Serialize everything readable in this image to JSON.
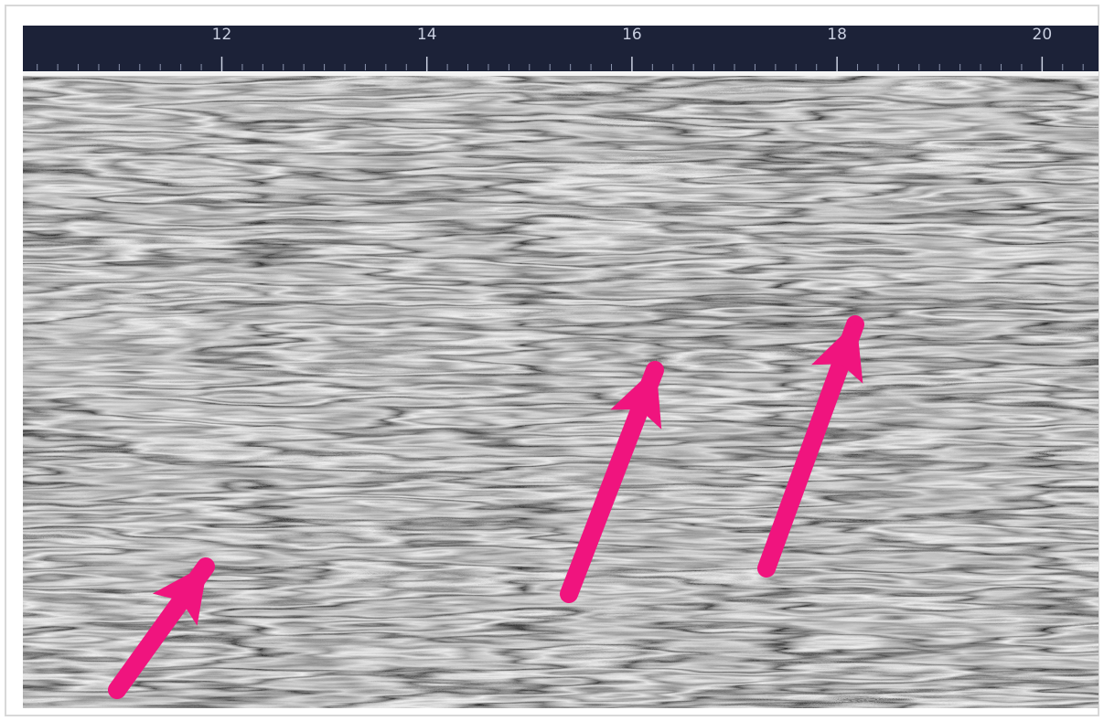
{
  "ruler": {
    "xlim": [
      10.06,
      20.55
    ],
    "ticks": [
      12,
      14,
      16,
      18,
      20
    ]
  }
}
